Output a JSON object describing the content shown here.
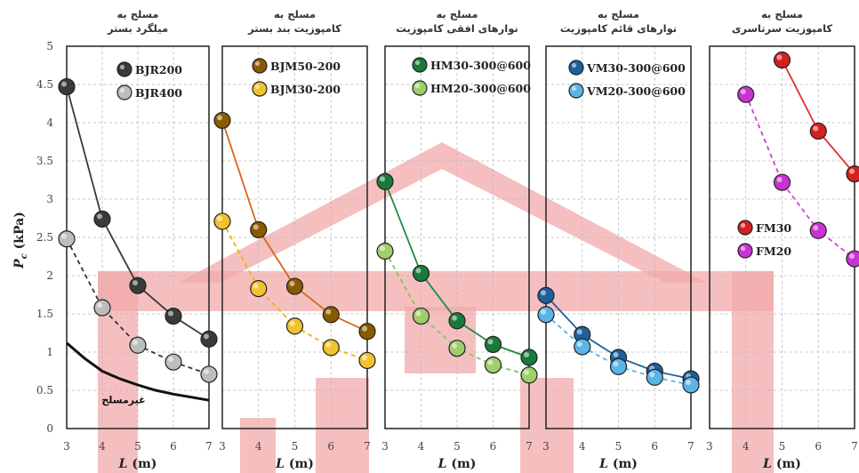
{
  "watermark_color": "#f2a9ab",
  "y_axis": {
    "label": "P_c (kPa)",
    "ylim": [
      0,
      5
    ],
    "ticks": [
      "0",
      "0.5",
      "1",
      "1.5",
      "2",
      "2.5",
      "3",
      "3.5",
      "4",
      "4.5",
      "5"
    ]
  },
  "chart_data": [
    {
      "type": "line",
      "title": [
        "مسلح به",
        "میلگرد بستر"
      ],
      "xlabel": "L (m)",
      "xlim": [
        3,
        7
      ],
      "x_ticks": [
        "3",
        "4",
        "5",
        "6",
        "7"
      ],
      "ylim": [
        0,
        5
      ],
      "grid": true,
      "series": [
        {
          "name": "BJR200",
          "color": "#3a3a3a",
          "dash": false,
          "marker": true,
          "x": [
            3,
            4,
            5,
            6,
            7
          ],
          "y": [
            4.47,
            2.74,
            1.87,
            1.47,
            1.17
          ]
        },
        {
          "name": "BJR400",
          "color": "#bdbdbd",
          "line_color": "#333333",
          "dash": true,
          "marker": true,
          "x": [
            3,
            4,
            5,
            6,
            7
          ],
          "y": [
            2.48,
            1.58,
            1.09,
            0.87,
            0.71
          ]
        },
        {
          "name": "",
          "color": "#111111",
          "dash": false,
          "marker": false,
          "thick": true,
          "x": [
            3,
            3.5,
            4,
            4.5,
            5,
            5.5,
            6,
            6.5,
            7
          ],
          "y": [
            1.12,
            0.92,
            0.75,
            0.65,
            0.57,
            0.5,
            0.45,
            0.41,
            0.37
          ]
        }
      ],
      "legend_placement": "top-right",
      "annotation": {
        "text": "غیرمسلح",
        "x": 4.6,
        "y": 0.33
      }
    },
    {
      "type": "line",
      "title": [
        "مسلح به",
        "کامپوزیت بند بستر"
      ],
      "xlabel": "L (m)",
      "xlim": [
        3,
        7
      ],
      "x_ticks": [
        "3",
        "4",
        "5",
        "6",
        "7"
      ],
      "ylim": [
        0,
        5
      ],
      "grid": true,
      "series": [
        {
          "name": "BJM50-200",
          "color": "#8a5a00",
          "line_color": "#d4661a",
          "dash": false,
          "marker": true,
          "x": [
            3,
            4,
            5,
            6,
            7
          ],
          "y": [
            4.03,
            2.6,
            1.86,
            1.49,
            1.27
          ]
        },
        {
          "name": "BJM30-200",
          "color": "#f2c12e",
          "line_color": "#e8b800",
          "dash": true,
          "marker": true,
          "x": [
            3,
            4,
            5,
            6,
            7
          ],
          "y": [
            2.71,
            1.83,
            1.34,
            1.06,
            0.89
          ]
        }
      ],
      "legend_placement": "top-right"
    },
    {
      "type": "line",
      "title": [
        "مسلح به",
        "نوارهای افقی کامپوزیت"
      ],
      "xlabel": "L (m)",
      "xlim": [
        3,
        7
      ],
      "x_ticks": [
        "3",
        "4",
        "5",
        "6",
        "7"
      ],
      "ylim": [
        0,
        5
      ],
      "grid": true,
      "series": [
        {
          "name": "HM30-300@600",
          "color": "#1a7a3a",
          "line_color": "#1f8a44",
          "dash": false,
          "marker": true,
          "x": [
            3,
            4,
            5,
            6,
            7
          ],
          "y": [
            3.23,
            2.03,
            1.41,
            1.1,
            0.93
          ]
        },
        {
          "name": "HM20-300@600",
          "color": "#9fcf6a",
          "line_color": "#8cc25a",
          "dash": true,
          "marker": true,
          "x": [
            3,
            4,
            5,
            6,
            7
          ],
          "y": [
            2.32,
            1.47,
            1.05,
            0.83,
            0.7
          ]
        }
      ],
      "legend_placement": "top-right"
    },
    {
      "type": "line",
      "title": [
        "مسلح به",
        "نوارهای قائم کامپوزیت"
      ],
      "xlabel": "L (m)",
      "xlim": [
        3,
        7
      ],
      "x_ticks": [
        "3",
        "4",
        "5",
        "6",
        "7"
      ],
      "ylim": [
        0,
        5
      ],
      "grid": true,
      "series": [
        {
          "name": "VM30-300@600",
          "color": "#1f5f9e",
          "line_color": "#1f5f9e",
          "dash": false,
          "marker": true,
          "x": [
            3,
            4,
            5,
            6,
            7
          ],
          "y": [
            1.74,
            1.23,
            0.93,
            0.75,
            0.65
          ]
        },
        {
          "name": "VM20-300@600",
          "color": "#5ab4e6",
          "line_color": "#5ab4e6",
          "dash": true,
          "marker": true,
          "x": [
            3,
            4,
            5,
            6,
            7
          ],
          "y": [
            1.49,
            1.07,
            0.81,
            0.67,
            0.57
          ]
        }
      ],
      "legend_placement": "top-right"
    },
    {
      "type": "line",
      "title": [
        "مسلح به",
        "کامپوزیت سرتاسری"
      ],
      "xlabel": "L (m)",
      "xlim": [
        3,
        7
      ],
      "x_ticks": [
        "3",
        "4",
        "5",
        "6",
        "7"
      ],
      "ylim": [
        0,
        5
      ],
      "grid": true,
      "series": [
        {
          "name": "FM30",
          "color": "#d42020",
          "line_color": "#e03030",
          "dash": false,
          "marker": true,
          "x": [
            5,
            6,
            7
          ],
          "y": [
            4.82,
            3.89,
            3.33
          ]
        },
        {
          "name": "FM20",
          "color": "#c832d2",
          "line_color": "#d040d8",
          "dash": true,
          "marker": true,
          "x": [
            4,
            5,
            6,
            7
          ],
          "y": [
            4.37,
            3.22,
            2.59,
            2.22
          ]
        }
      ],
      "legend_placement": "center-left"
    }
  ]
}
